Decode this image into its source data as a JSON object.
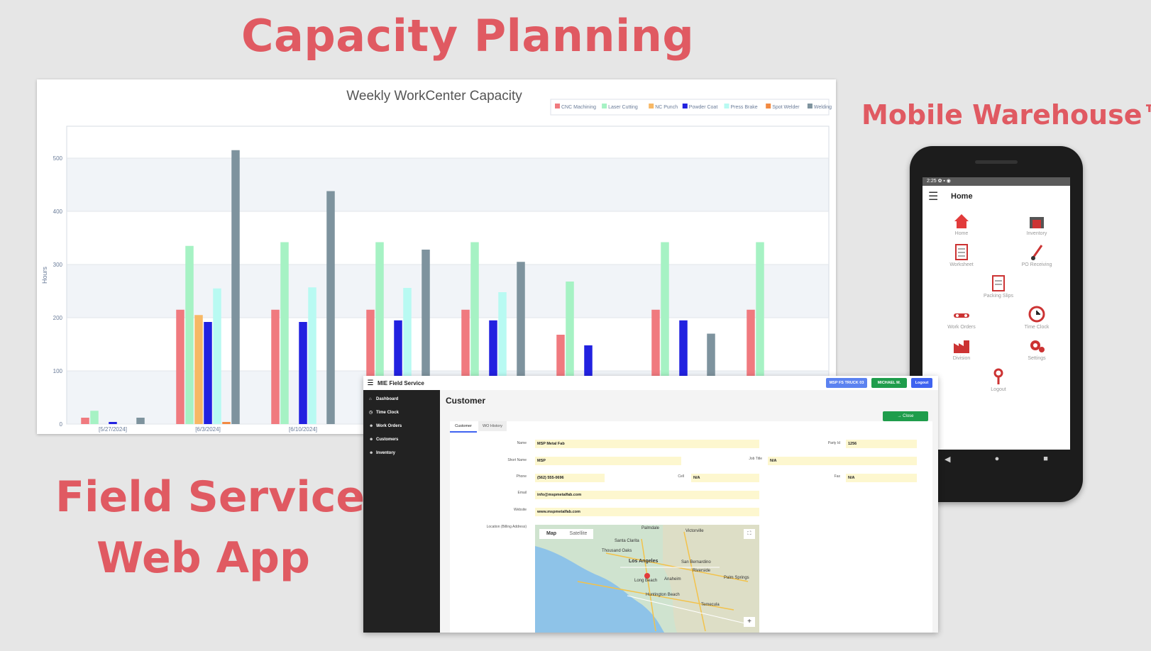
{
  "headlines": {
    "capacity": "Capacity Planning",
    "mobile": "Mobile Warehouse™",
    "field_line1": "Field Service",
    "field_line2": "Web App"
  },
  "chart_data": {
    "type": "bar",
    "title": "Weekly WorkCenter Capacity",
    "ylabel": "Hours",
    "xlabel": "",
    "ylim": [
      0,
      560
    ],
    "yticks": [
      0,
      100,
      200,
      300,
      400,
      500
    ],
    "categories": [
      "[5/27/2024]",
      "[6/3/2024]",
      "[6/10/2024]",
      "",
      "",
      "",
      "",
      ""
    ],
    "legend_position": "top-right",
    "series": [
      {
        "name": "CNC Machining",
        "color": "#f07a7f",
        "values": [
          12,
          215,
          215,
          215,
          215,
          168,
          215,
          215
        ]
      },
      {
        "name": "Laser Cutting",
        "color": "#a6f2c4",
        "values": [
          25,
          335,
          342,
          342,
          342,
          268,
          342,
          342
        ]
      },
      {
        "name": "NC Punch",
        "color": "#f7b865",
        "values": [
          0,
          205,
          0,
          0,
          0,
          0,
          0,
          0
        ]
      },
      {
        "name": "Powder Coat",
        "color": "#2222e0",
        "values": [
          4,
          192,
          192,
          195,
          195,
          148,
          195,
          6
        ]
      },
      {
        "name": "Press Brake",
        "color": "#b8faf2",
        "values": [
          0,
          255,
          257,
          256,
          248,
          8,
          0,
          0
        ]
      },
      {
        "name": "Spot Welder",
        "color": "#f28a42",
        "values": [
          0,
          4,
          0,
          0,
          0,
          0,
          0,
          0
        ]
      },
      {
        "name": "Welding",
        "color": "#7e939e",
        "values": [
          12,
          515,
          438,
          328,
          305,
          20,
          170,
          20
        ]
      }
    ]
  },
  "phone": {
    "status": "2:25 ✿ ▪ ◉",
    "title": "Home",
    "tiles": [
      {
        "label": "Home",
        "icon": "house-icon"
      },
      {
        "label": "Inventory",
        "icon": "warehouse-icon"
      },
      {
        "label": "Worksheet",
        "icon": "clipboard-icon"
      },
      {
        "label": "PO Receiving",
        "icon": "hand-truck-icon"
      },
      {
        "label": "Packing Slips",
        "icon": "document-icon"
      },
      {
        "label": "Work Orders",
        "icon": "conveyor-icon"
      },
      {
        "label": "Time Clock",
        "icon": "clock-icon"
      },
      {
        "label": "Division",
        "icon": "factory-icon"
      },
      {
        "label": "Settings",
        "icon": "gears-icon"
      },
      {
        "label": "Logout",
        "icon": "key-icon"
      }
    ],
    "nav": [
      "◀",
      "●",
      "■"
    ]
  },
  "webapp": {
    "app_title": "MIE Field Service",
    "top_buttons": {
      "truck": "MSP FS TRUCK 03",
      "user": "MICHAEL M.",
      "logout": "Logout"
    },
    "sidebar": [
      "Dashboard",
      "Time Clock",
      "Work Orders",
      "Customers",
      "Inventory"
    ],
    "heading": "Customer",
    "close": "→ Close",
    "tabs": [
      "Customer",
      "WO History"
    ],
    "fields": {
      "name_label": "Name",
      "name": "MSP Metal Fab",
      "partyid_label": "Party Id",
      "partyid": "1256",
      "short_label": "Short Name",
      "short": "MSP",
      "jobtitle_label": "Job Title",
      "jobtitle": "N/A",
      "phone_label": "Phone",
      "phone": "(562) 555-0696",
      "cell_label": "Cell",
      "cell": "N/A",
      "fax_label": "Fax",
      "fax": "N/A",
      "email_label": "Email",
      "email": "info@mspmetalfab.com",
      "website_label": "Website",
      "website": "www.mspmetalfab.com",
      "location_label": "Location (Billing Address)"
    },
    "map": {
      "map_btn": "Map",
      "satellite_btn": "Satellite",
      "cities": [
        "Palmdale",
        "Victorville",
        "Santa Clarita",
        "Thousand Oaks",
        "Los Angeles",
        "San Bernardino",
        "Riverside",
        "Anaheim",
        "Long Beach",
        "Huntington Beach",
        "Temecula",
        "Palm Springs"
      ]
    }
  },
  "colors": {
    "headline": "#e05a62",
    "sidebar": "#222222",
    "green": "#1f9d4c",
    "blue": "#3f63f0"
  }
}
